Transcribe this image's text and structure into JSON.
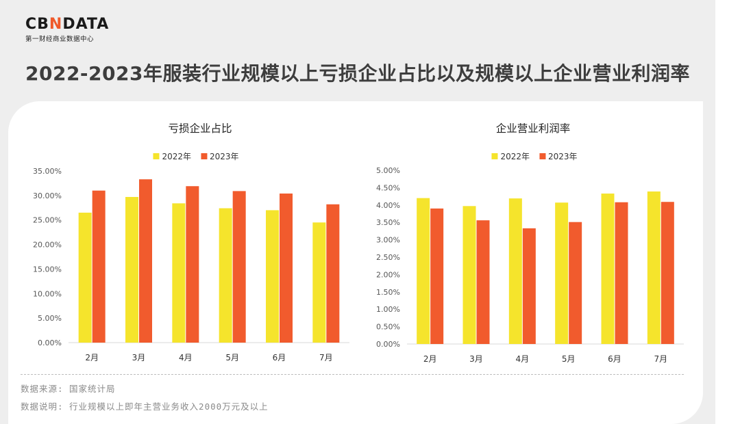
{
  "brand": {
    "logo_cb": "CB",
    "logo_n": "N",
    "logo_data": "DATA",
    "subtitle": "第一财经商业数据中心"
  },
  "headline": "2022-2023年服装行业规模以上亏损企业占比以及规模以上企业营业利润率",
  "colors": {
    "series_2022": "#f5e42c",
    "series_2023": "#f15b2d",
    "axis": "#d9d9d9",
    "tick_text": "#555555"
  },
  "chart_data": [
    {
      "type": "bar",
      "title": "亏损企业占比",
      "categories": [
        "2月",
        "3月",
        "4月",
        "5月",
        "6月",
        "7月"
      ],
      "series": [
        {
          "name": "2022年",
          "values": [
            26.5,
            29.7,
            28.4,
            27.4,
            27.0,
            24.5
          ]
        },
        {
          "name": "2023年",
          "values": [
            31.0,
            33.3,
            31.9,
            30.9,
            30.4,
            28.2
          ]
        }
      ],
      "ylim": [
        0,
        35
      ],
      "y_ticks": [
        "0.00%",
        "5.00%",
        "10.00%",
        "15.00%",
        "20.00%",
        "25.00%",
        "30.00%",
        "35.00%"
      ],
      "legend": "top-center",
      "grid": false
    },
    {
      "type": "bar",
      "title": "企业营业利润率",
      "categories": [
        "2月",
        "3月",
        "4月",
        "5月",
        "6月",
        "7月"
      ],
      "series": [
        {
          "name": "2022年",
          "values": [
            4.2,
            3.97,
            4.19,
            4.07,
            4.33,
            4.39
          ]
        },
        {
          "name": "2023年",
          "values": [
            3.9,
            3.56,
            3.33,
            3.51,
            4.08,
            4.09
          ]
        }
      ],
      "ylim": [
        0,
        5
      ],
      "y_ticks": [
        "0.00%",
        "0.50%",
        "1.00%",
        "1.50%",
        "2.00%",
        "2.50%",
        "3.00%",
        "3.50%",
        "4.00%",
        "4.50%",
        "5.00%"
      ],
      "legend": "top-center",
      "grid": false
    }
  ],
  "footnotes": {
    "source": "数据来源: 国家统计局",
    "note": "数据说明: 行业规模以上即年主营业务收入2000万元及以上"
  }
}
